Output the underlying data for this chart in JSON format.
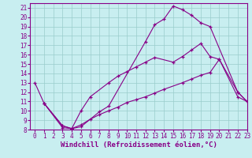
{
  "xlabel": "Windchill (Refroidissement éolien,°C)",
  "xlim": [
    -0.5,
    23
  ],
  "ylim": [
    8,
    21.5
  ],
  "yticks": [
    8,
    9,
    10,
    11,
    12,
    13,
    14,
    15,
    16,
    17,
    18,
    19,
    20,
    21
  ],
  "xticks": [
    0,
    1,
    2,
    3,
    4,
    5,
    6,
    7,
    8,
    9,
    10,
    11,
    12,
    13,
    14,
    15,
    16,
    17,
    18,
    19,
    20,
    21,
    22,
    23
  ],
  "line_color": "#880088",
  "bg_color": "#c8eef0",
  "grid_color": "#99cccc",
  "line1_x": [
    0,
    1,
    3,
    4,
    5,
    7,
    8,
    12,
    13,
    14,
    15,
    16,
    17,
    18,
    19,
    22,
    23
  ],
  "line1_y": [
    13,
    10.8,
    8.2,
    8.1,
    8.3,
    9.9,
    10.5,
    17.4,
    19.2,
    19.8,
    21.2,
    20.8,
    20.2,
    19.4,
    19.0,
    12.0,
    11.0
  ],
  "line2_x": [
    1,
    3,
    4,
    5,
    6,
    8,
    9,
    10,
    11,
    12,
    13,
    15,
    16,
    17,
    18,
    19,
    20,
    22,
    23
  ],
  "line2_y": [
    10.8,
    8.4,
    8.1,
    10.0,
    11.5,
    13.0,
    13.7,
    14.2,
    14.7,
    15.2,
    15.7,
    15.2,
    15.8,
    16.5,
    17.2,
    15.8,
    15.5,
    12.0,
    11.0
  ],
  "line3_x": [
    1,
    3,
    4,
    5,
    6,
    7,
    8,
    9,
    10,
    11,
    12,
    13,
    14,
    16,
    17,
    18,
    19,
    20,
    22,
    23
  ],
  "line3_y": [
    10.8,
    8.4,
    8.1,
    8.5,
    9.1,
    9.6,
    10.0,
    10.4,
    10.9,
    11.2,
    11.5,
    11.9,
    12.3,
    13.0,
    13.4,
    13.8,
    14.1,
    15.5,
    11.5,
    11.0
  ],
  "label_fontsize": 6.5,
  "tick_fontsize": 5.5
}
